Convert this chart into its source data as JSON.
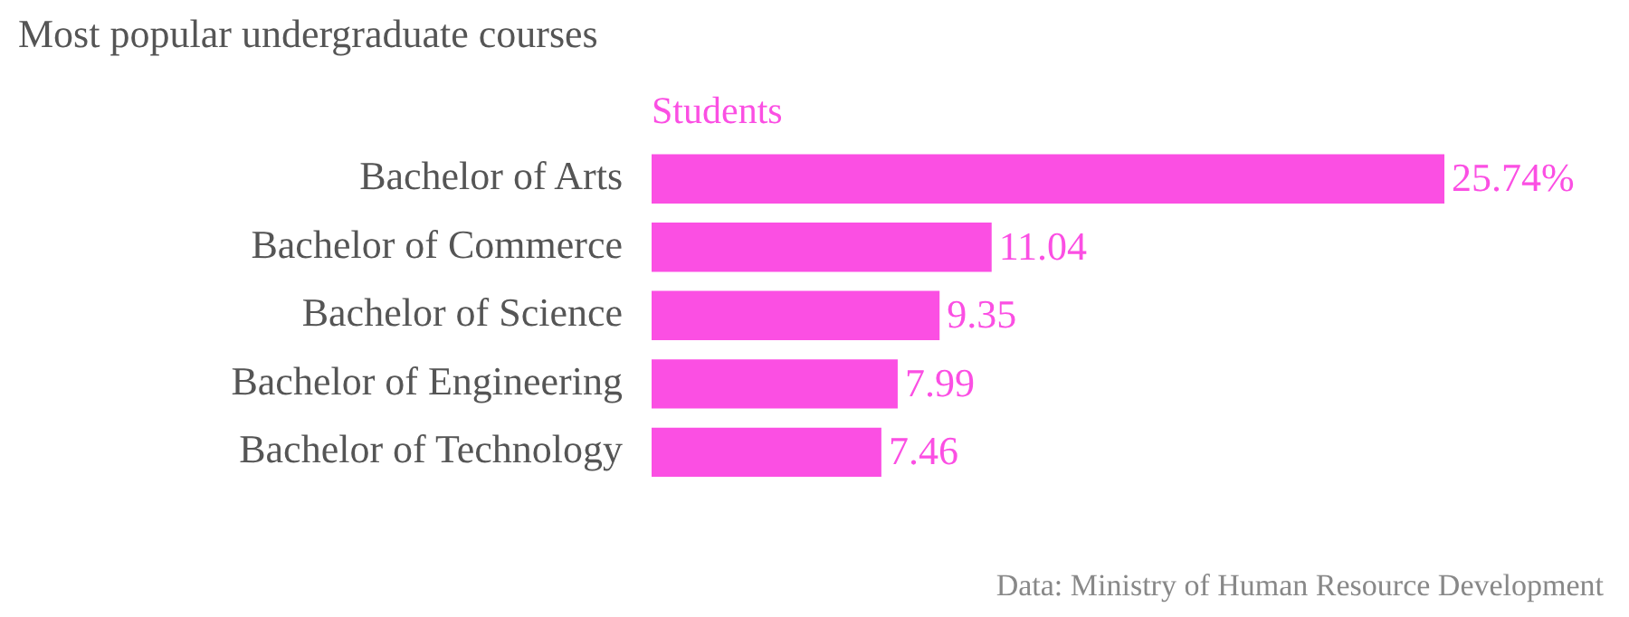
{
  "chart_data": {
    "type": "bar",
    "orientation": "horizontal",
    "title": "Most popular undergraduate courses",
    "categories": [
      "Bachelor of Arts",
      "Bachelor of Commerce",
      "Bachelor of Science",
      "Bachelor of Engineering",
      "Bachelor of Technology"
    ],
    "series": [
      {
        "name": "Students",
        "color": "#fb4fe3",
        "values": [
          25.74,
          11.04,
          9.35,
          7.99,
          7.46
        ],
        "value_labels": [
          "25.74%",
          "11.04",
          "9.35",
          "7.99",
          "7.46"
        ]
      }
    ],
    "legend": "top",
    "annotations": [
      "Data: Ministry of Human Resource Development"
    ]
  }
}
